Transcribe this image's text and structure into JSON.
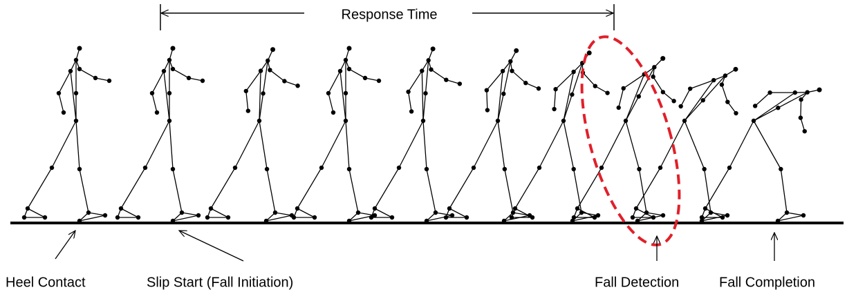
{
  "header": {
    "title": "Response Time"
  },
  "labels": [
    "Heel Contact",
    "Slip Start (Fall Initiation)",
    "Fall Detection",
    "Fall Completion"
  ]
}
